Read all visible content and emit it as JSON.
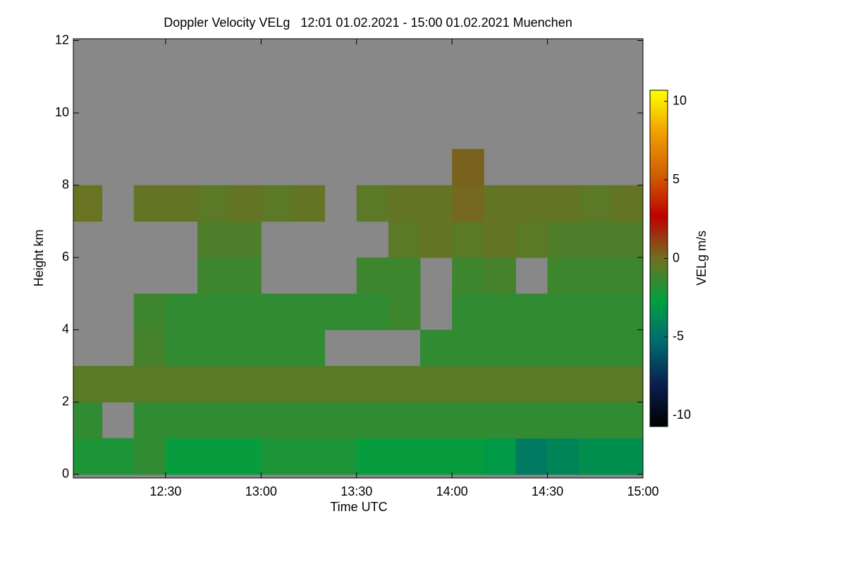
{
  "chart_data": {
    "type": "heatmap",
    "title": "Doppler Velocity VELg   12:01 01.02.2021 - 15:00 01.02.2021 Muenchen",
    "x_label": "Time UTC",
    "y_label": "Height km",
    "colorbar_label": "VELg m/s",
    "xbins": [
      721,
      730,
      740,
      750,
      760,
      770,
      780,
      790,
      800,
      810,
      820,
      830,
      840,
      850,
      860,
      870,
      880,
      890,
      900
    ],
    "ybins": [
      0,
      1,
      2,
      3,
      4,
      5,
      6,
      7,
      8,
      9,
      10,
      11,
      12
    ],
    "z": [
      [
        -2,
        -2,
        -1.5,
        -2.5,
        -2.5,
        -2.5,
        -2,
        -2,
        -2,
        -2.5,
        -2.5,
        -2.5,
        -2.5,
        -3,
        -4.5,
        -4,
        -3.5,
        -3.5
      ],
      [
        -1.5,
        null,
        -1.5,
        -1.5,
        -1.5,
        -1.5,
        -1.5,
        -1.5,
        -1.5,
        -1.5,
        -1.5,
        -1.5,
        -1.5,
        -1.5,
        -1.5,
        -1.5,
        -1.5,
        -1.5
      ],
      [
        -0.5,
        -0.5,
        -0.5,
        -0.5,
        -0.5,
        -0.5,
        -0.5,
        -0.5,
        -0.5,
        -0.5,
        -0.5,
        -0.5,
        -0.5,
        -0.5,
        -0.5,
        -0.5,
        -0.5,
        -0.5
      ],
      [
        null,
        null,
        -1,
        -1.5,
        -1.5,
        -1.5,
        -1.5,
        -1.5,
        null,
        null,
        null,
        -1.5,
        -1.5,
        -1.5,
        -1.5,
        -1.5,
        -1.5,
        -1.5
      ],
      [
        null,
        null,
        -1.2,
        -1.5,
        -1.5,
        -1.5,
        -1.5,
        -1.5,
        -1.5,
        -1.5,
        -1.2,
        null,
        -1.5,
        -1.5,
        -1.5,
        -1.5,
        -1.5,
        -1.5
      ],
      [
        null,
        null,
        null,
        null,
        -1.2,
        -1.2,
        null,
        null,
        null,
        -1.2,
        -1.2,
        null,
        -1.2,
        -1,
        null,
        -1.2,
        -1.2,
        -1.2
      ],
      [
        null,
        null,
        null,
        null,
        -0.8,
        -0.8,
        null,
        null,
        null,
        null,
        -0.5,
        -0.3,
        -0.5,
        -0.3,
        -0.5,
        -0.8,
        -0.8,
        -0.8
      ],
      [
        -0.2,
        null,
        -0.3,
        -0.3,
        -0.5,
        -0.3,
        -0.5,
        -0.3,
        null,
        -0.5,
        -0.3,
        -0.3,
        0.2,
        -0.3,
        -0.3,
        -0.3,
        -0.5,
        -0.3
      ],
      [
        null,
        null,
        null,
        null,
        null,
        null,
        null,
        null,
        null,
        null,
        null,
        null,
        0.3,
        null,
        null,
        null,
        null,
        null
      ],
      [
        null,
        null,
        null,
        null,
        null,
        null,
        null,
        null,
        null,
        null,
        null,
        null,
        null,
        null,
        null,
        null,
        null,
        null
      ],
      [
        null,
        null,
        null,
        null,
        null,
        null,
        null,
        null,
        null,
        null,
        null,
        null,
        null,
        null,
        null,
        null,
        null,
        null
      ],
      [
        null,
        null,
        null,
        null,
        null,
        null,
        null,
        null,
        null,
        null,
        null,
        null,
        null,
        null,
        null,
        null,
        null,
        null
      ]
    ],
    "xlim": [
      721,
      900
    ],
    "xticks": [
      {
        "value": 750,
        "label": "12:30"
      },
      {
        "value": 780,
        "label": "13:00"
      },
      {
        "value": 810,
        "label": "13:30"
      },
      {
        "value": 840,
        "label": "14:00"
      },
      {
        "value": 870,
        "label": "14:30"
      },
      {
        "value": 900,
        "label": "15:00"
      }
    ],
    "ylim": [
      -0.1,
      12.05
    ],
    "yticks": [
      0,
      2,
      4,
      6,
      8,
      10,
      12
    ],
    "zlim": [
      -10.7,
      10.7
    ],
    "zticks": [
      -10,
      -5,
      0,
      5,
      10
    ],
    "colors": [
      "#000000",
      "#0a1e50",
      "#006a70",
      "#00a040",
      "#707020",
      "#c00000",
      "#d06000",
      "#f0a000",
      "#ffff00"
    ],
    "nodata_color": "#888888"
  }
}
